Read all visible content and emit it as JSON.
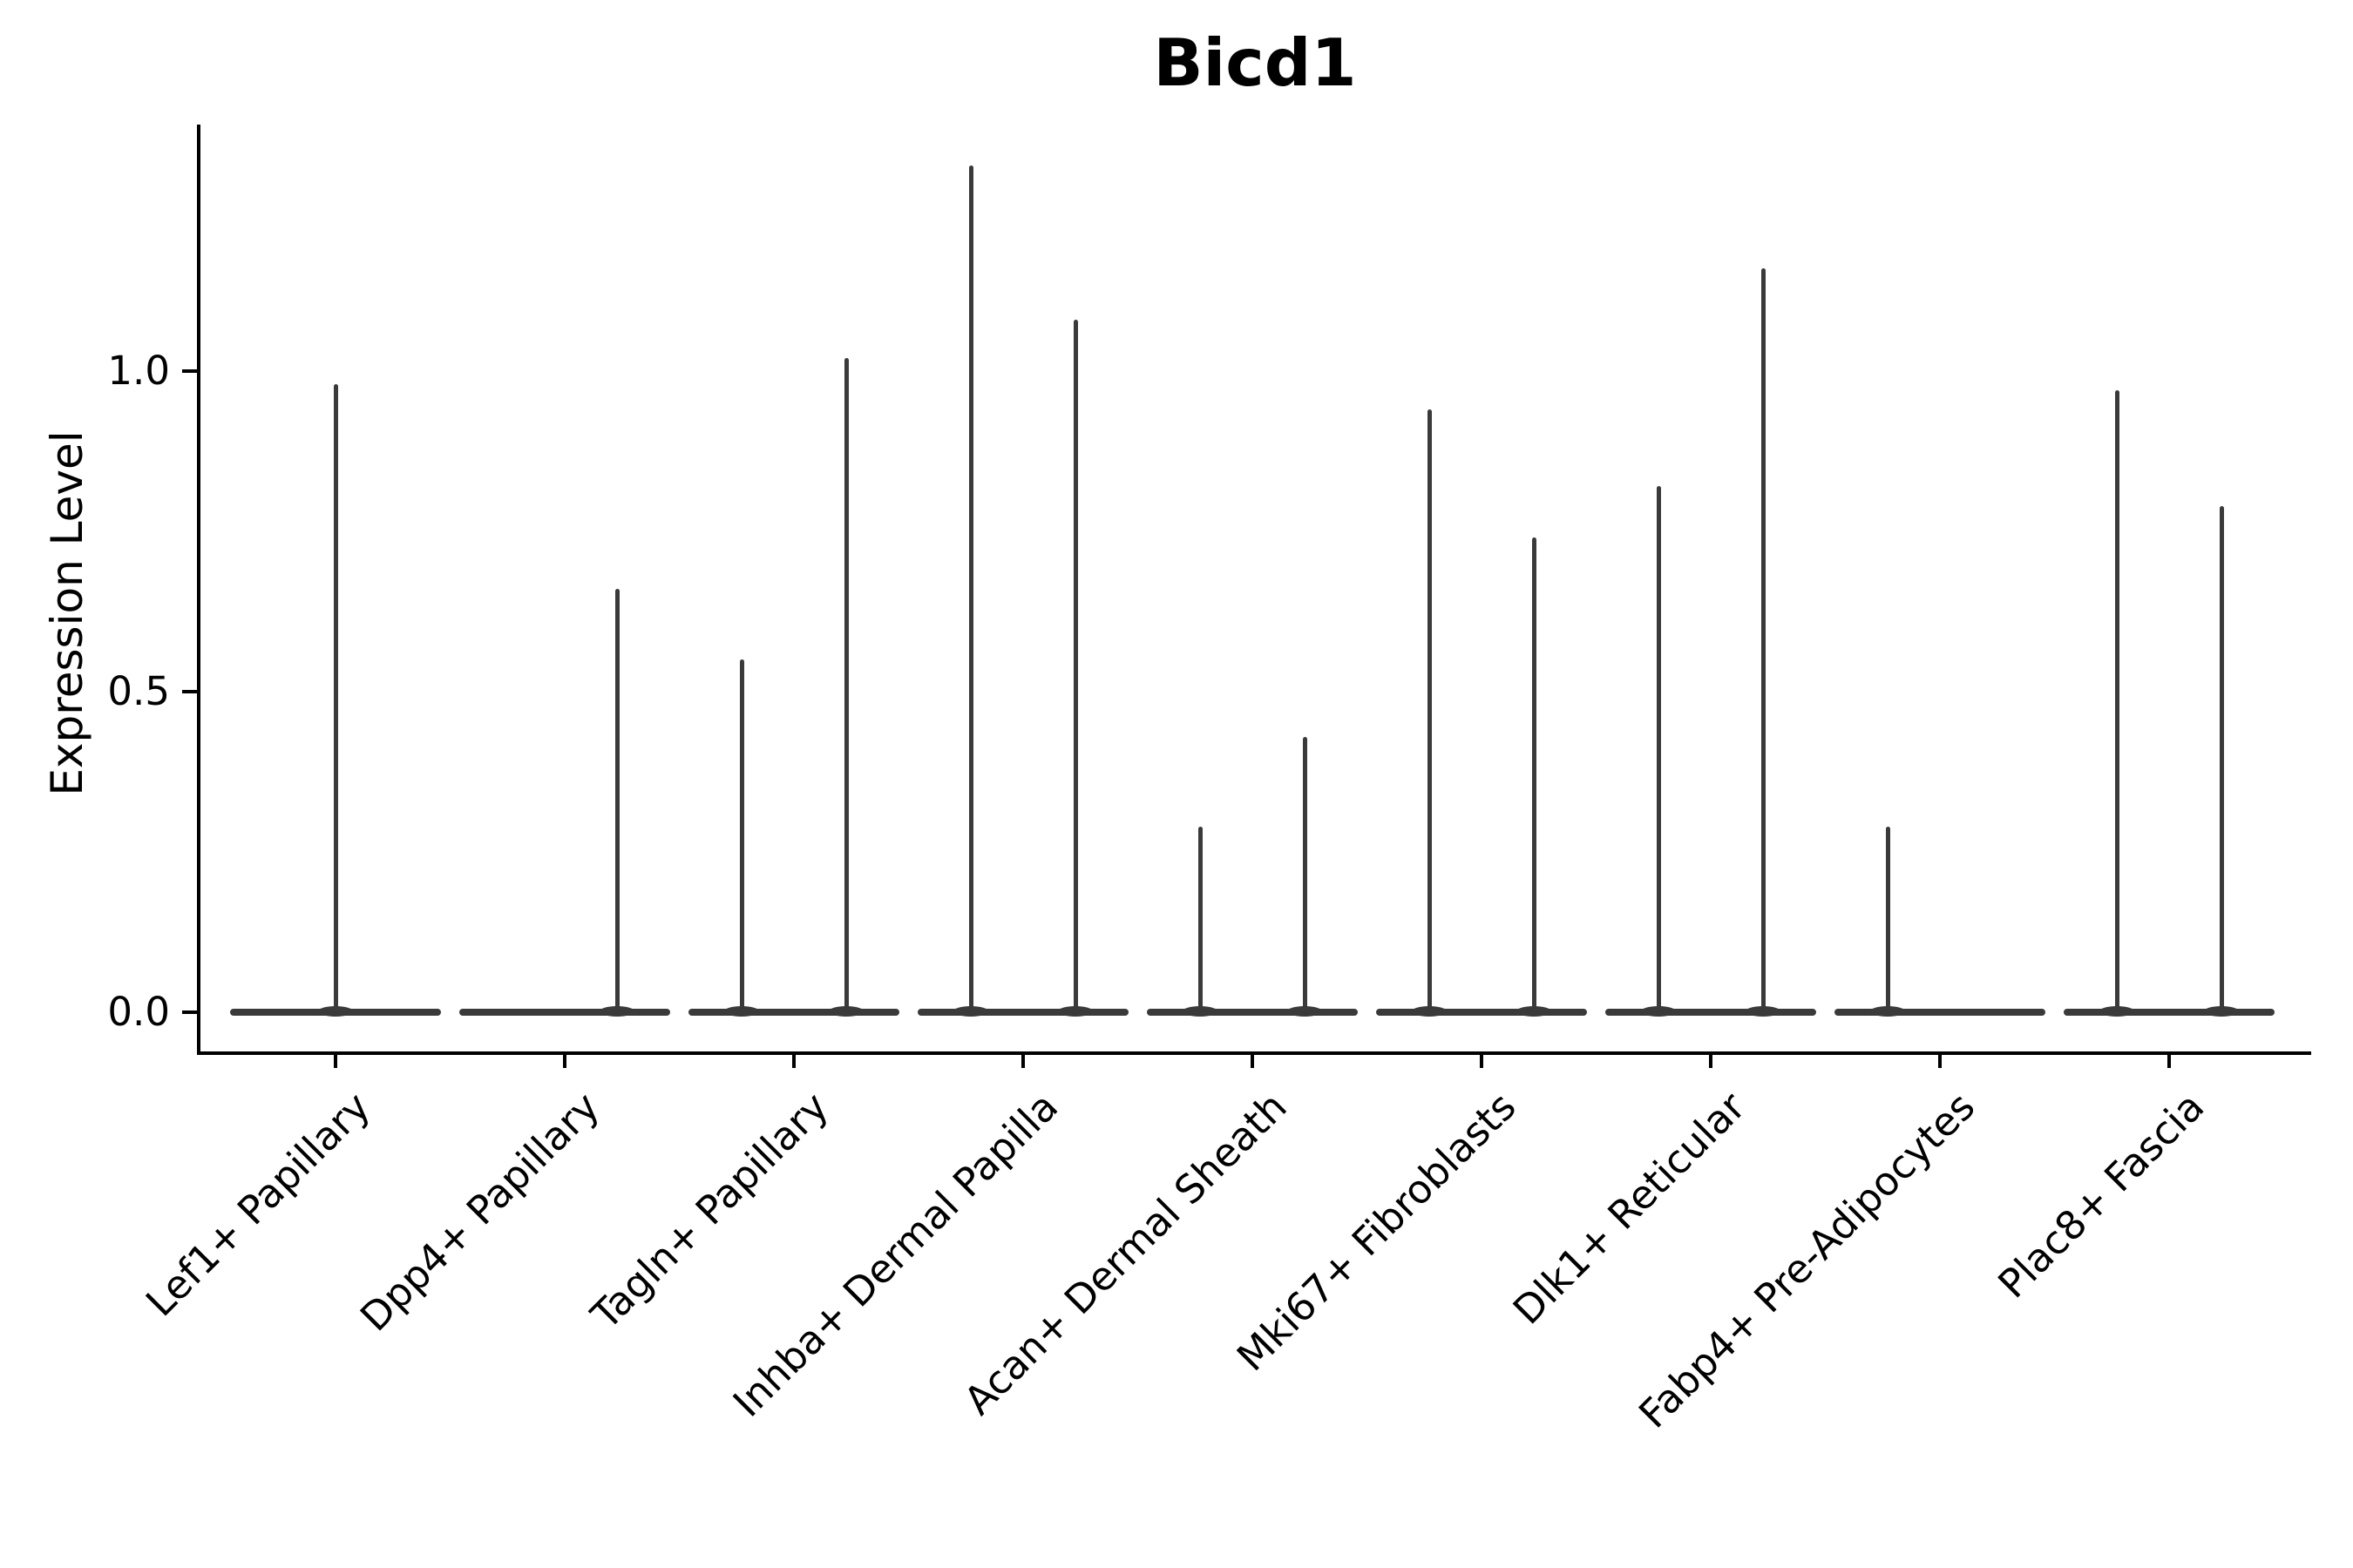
{
  "title": "Bicd1",
  "axes": {
    "ylabel": "Expression Level",
    "yticks": [
      {
        "label": "0.0",
        "value": 0.0
      },
      {
        "label": "0.5",
        "value": 0.5
      },
      {
        "label": "1.0",
        "value": 1.0
      }
    ]
  },
  "colors": {
    "violin": "#3a3a3a",
    "axis": "#000000",
    "background": "#ffffff",
    "text": "#000000"
  },
  "chart_data": {
    "type": "violin",
    "title": "Bicd1",
    "xlabel": "",
    "ylabel": "Expression Level",
    "ylim": [
      -0.06,
      1.38
    ],
    "yticks": [
      0.0,
      0.5,
      1.0
    ],
    "grid": false,
    "legend": "none",
    "baseline_value": 0.0,
    "note_shape": "each violin collapses to a flat bar at 0 with a thin tail spike; spikes are dodged left/right within a category when two violins are present",
    "categories": [
      "Lef1+ Papillary",
      "Dpp4+ Papillary",
      "Tagln+ Papillary",
      "Inhba+ Dermal Papilla",
      "Acan+ Dermal Sheath",
      "Mki67+ Fibroblasts",
      "Dlk1+ Reticular",
      "Fabp4+ Pre-Adipocytes",
      "Plac8+ Fascia"
    ],
    "groups": [
      {
        "category": "Lef1+ Papillary",
        "spikes": [
          {
            "pos": "center",
            "max": 0.98
          }
        ]
      },
      {
        "category": "Dpp4+ Papillary",
        "spikes": [
          {
            "pos": "right",
            "max": 0.66
          }
        ]
      },
      {
        "category": "Tagln+ Papillary",
        "spikes": [
          {
            "pos": "left",
            "max": 0.55
          },
          {
            "pos": "right",
            "max": 1.02
          }
        ]
      },
      {
        "category": "Inhba+ Dermal Papilla",
        "spikes": [
          {
            "pos": "left",
            "max": 1.32
          },
          {
            "pos": "right",
            "max": 1.08
          }
        ]
      },
      {
        "category": "Acan+ Dermal Sheath",
        "spikes": [
          {
            "pos": "left",
            "max": 0.29
          },
          {
            "pos": "right",
            "max": 0.43
          }
        ]
      },
      {
        "category": "Mki67+ Fibroblasts",
        "spikes": [
          {
            "pos": "left",
            "max": 0.94
          },
          {
            "pos": "right",
            "max": 0.74
          }
        ]
      },
      {
        "category": "Dlk1+ Reticular",
        "spikes": [
          {
            "pos": "left",
            "max": 0.82
          },
          {
            "pos": "right",
            "max": 1.16
          }
        ]
      },
      {
        "category": "Fabp4+ Pre-Adipocytes",
        "spikes": [
          {
            "pos": "left",
            "max": 0.29
          }
        ]
      },
      {
        "category": "Plac8+ Fascia",
        "spikes": [
          {
            "pos": "left",
            "max": 0.97
          },
          {
            "pos": "right",
            "max": 0.79
          }
        ]
      }
    ]
  }
}
